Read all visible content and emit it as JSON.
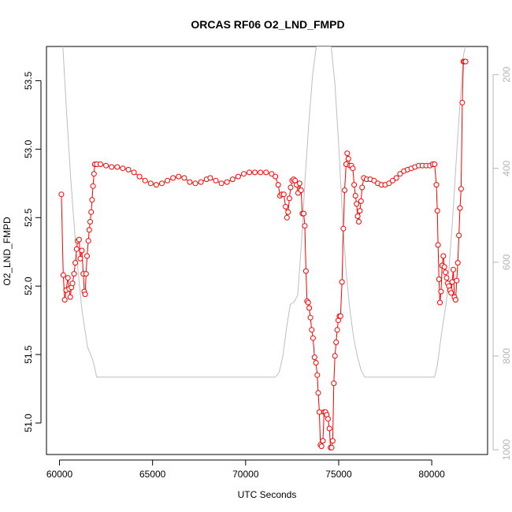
{
  "chart_data": {
    "type": "line",
    "title": "ORCAS RF06 O2_LND_FMPD",
    "xlabel": "UTC Seconds",
    "ylabel": "O2_LND_FMPD",
    "xlim": [
      59300,
      83000
    ],
    "ylim": [
      50.77,
      53.75
    ],
    "y2lim": [
      1010,
      140
    ],
    "y2_reversed": true,
    "x_ticks": [
      60000,
      65000,
      70000,
      75000,
      80000
    ],
    "y_ticks": [
      51.0,
      51.5,
      52.0,
      52.5,
      53.0,
      53.5
    ],
    "y_tick_labels": [
      "51.0",
      "51.5",
      "52.0",
      "52.5",
      "53.0",
      "53.5"
    ],
    "y2_ticks": [
      200,
      400,
      600,
      800,
      1000
    ],
    "grid": false,
    "colors": {
      "series": "#ff0000",
      "secondary": "#bebebe",
      "axes": "#000000",
      "right_axis": "#b4b4b4"
    },
    "series": [
      {
        "style": "points-and-lines",
        "marker": "open-circle",
        "color": "#ff0000",
        "points": [
          [
            60100,
            52.67
          ],
          [
            60200,
            52.08
          ],
          [
            60280,
            51.9
          ],
          [
            60360,
            51.97
          ],
          [
            60450,
            52.06
          ],
          [
            60520,
            51.98
          ],
          [
            60580,
            51.92
          ],
          [
            60640,
            51.99
          ],
          [
            60700,
            52.02
          ],
          [
            60780,
            52.09
          ],
          [
            60850,
            52.17
          ],
          [
            60920,
            52.27
          ],
          [
            60980,
            52.33
          ],
          [
            61050,
            52.34
          ],
          [
            61120,
            52.2
          ],
          [
            61200,
            52.26
          ],
          [
            61280,
            52.09
          ],
          [
            61330,
            51.96
          ],
          [
            61380,
            51.94
          ],
          [
            61430,
            52.09
          ],
          [
            61480,
            52.22
          ],
          [
            61550,
            52.33
          ],
          [
            61600,
            52.41
          ],
          [
            61650,
            52.47
          ],
          [
            61700,
            52.54
          ],
          [
            61750,
            52.63
          ],
          [
            61800,
            52.73
          ],
          [
            61850,
            52.82
          ],
          [
            61900,
            52.89
          ],
          [
            62000,
            52.89
          ],
          [
            62200,
            52.89
          ],
          [
            62500,
            52.88
          ],
          [
            62800,
            52.87
          ],
          [
            63100,
            52.87
          ],
          [
            63400,
            52.86
          ],
          [
            63700,
            52.85
          ],
          [
            64000,
            52.83
          ],
          [
            64300,
            52.8
          ],
          [
            64600,
            52.77
          ],
          [
            64900,
            52.75
          ],
          [
            65200,
            52.74
          ],
          [
            65500,
            52.75
          ],
          [
            65800,
            52.77
          ],
          [
            66100,
            52.79
          ],
          [
            66400,
            52.8
          ],
          [
            66700,
            52.79
          ],
          [
            67000,
            52.76
          ],
          [
            67300,
            52.75
          ],
          [
            67600,
            52.76
          ],
          [
            67900,
            52.78
          ],
          [
            68100,
            52.79
          ],
          [
            68400,
            52.77
          ],
          [
            68700,
            52.75
          ],
          [
            69000,
            52.76
          ],
          [
            69300,
            52.78
          ],
          [
            69600,
            52.8
          ],
          [
            69900,
            52.82
          ],
          [
            70200,
            52.83
          ],
          [
            70500,
            52.83
          ],
          [
            70800,
            52.83
          ],
          [
            71100,
            52.83
          ],
          [
            71400,
            52.82
          ],
          [
            71600,
            52.8
          ],
          [
            71750,
            52.74
          ],
          [
            71850,
            52.66
          ],
          [
            71950,
            52.67
          ],
          [
            72050,
            52.67
          ],
          [
            72150,
            52.58
          ],
          [
            72220,
            52.5
          ],
          [
            72280,
            52.54
          ],
          [
            72350,
            52.64
          ],
          [
            72420,
            52.72
          ],
          [
            72500,
            52.77
          ],
          [
            72580,
            52.78
          ],
          [
            72660,
            52.77
          ],
          [
            72740,
            52.74
          ],
          [
            72820,
            52.68
          ],
          [
            72900,
            52.75
          ],
          [
            72980,
            52.7
          ],
          [
            73050,
            52.53
          ],
          [
            73120,
            52.53
          ],
          [
            73180,
            52.44
          ],
          [
            73240,
            52.11
          ],
          [
            73300,
            51.89
          ],
          [
            73360,
            51.88
          ],
          [
            73420,
            51.84
          ],
          [
            73480,
            51.77
          ],
          [
            73550,
            51.68
          ],
          [
            73620,
            51.62
          ],
          [
            73700,
            51.48
          ],
          [
            73780,
            51.44
          ],
          [
            73850,
            51.35
          ],
          [
            73900,
            51.22
          ],
          [
            73960,
            51.08
          ],
          [
            74020,
            50.84
          ],
          [
            74080,
            50.83
          ],
          [
            74150,
            50.87
          ],
          [
            74220,
            51.08
          ],
          [
            74290,
            51.08
          ],
          [
            74360,
            51.06
          ],
          [
            74430,
            51.03
          ],
          [
            74500,
            50.96
          ],
          [
            74560,
            50.82
          ],
          [
            74620,
            50.82
          ],
          [
            74680,
            50.87
          ],
          [
            74740,
            51.29
          ],
          [
            74800,
            51.49
          ],
          [
            74860,
            51.59
          ],
          [
            74920,
            51.68
          ],
          [
            74980,
            51.75
          ],
          [
            75040,
            51.78
          ],
          [
            75100,
            51.78
          ],
          [
            75180,
            52.03
          ],
          [
            75250,
            52.42
          ],
          [
            75320,
            52.7
          ],
          [
            75400,
            52.89
          ],
          [
            75460,
            52.97
          ],
          [
            75520,
            52.93
          ],
          [
            75600,
            52.88
          ],
          [
            75680,
            52.88
          ],
          [
            75760,
            52.86
          ],
          [
            75830,
            52.74
          ],
          [
            75900,
            52.66
          ],
          [
            75960,
            52.6
          ],
          [
            76020,
            52.51
          ],
          [
            76080,
            52.47
          ],
          [
            76140,
            52.55
          ],
          [
            76200,
            52.62
          ],
          [
            76260,
            52.72
          ],
          [
            76350,
            52.79
          ],
          [
            76500,
            52.78
          ],
          [
            76700,
            52.78
          ],
          [
            76900,
            52.77
          ],
          [
            77100,
            52.75
          ],
          [
            77300,
            52.74
          ],
          [
            77500,
            52.74
          ],
          [
            77700,
            52.75
          ],
          [
            77900,
            52.77
          ],
          [
            78100,
            52.79
          ],
          [
            78300,
            52.82
          ],
          [
            78500,
            52.84
          ],
          [
            78700,
            52.85
          ],
          [
            78900,
            52.86
          ],
          [
            79100,
            52.87
          ],
          [
            79300,
            52.88
          ],
          [
            79500,
            52.88
          ],
          [
            79700,
            52.88
          ],
          [
            79900,
            52.88
          ],
          [
            80050,
            52.89
          ],
          [
            80150,
            52.89
          ],
          [
            80250,
            52.74
          ],
          [
            80300,
            52.55
          ],
          [
            80340,
            52.3
          ],
          [
            80390,
            52.05
          ],
          [
            80440,
            51.88
          ],
          [
            80500,
            51.96
          ],
          [
            80560,
            52.15
          ],
          [
            80620,
            52.22
          ],
          [
            80680,
            52.14
          ],
          [
            80740,
            52.1
          ],
          [
            80800,
            52.06
          ],
          [
            80860,
            52.02
          ],
          [
            80920,
            52.0
          ],
          [
            80980,
            51.97
          ],
          [
            81040,
            51.95
          ],
          [
            81100,
            52.03
          ],
          [
            81160,
            52.12
          ],
          [
            81220,
            51.92
          ],
          [
            81280,
            51.9
          ],
          [
            81340,
            52.04
          ],
          [
            81400,
            52.17
          ],
          [
            81460,
            52.37
          ],
          [
            81520,
            52.57
          ],
          [
            81580,
            52.71
          ],
          [
            81640,
            53.34
          ],
          [
            81700,
            53.64
          ],
          [
            81760,
            53.64
          ],
          [
            81820,
            53.64
          ]
        ]
      },
      {
        "style": "line",
        "color": "#bebebe",
        "axis": "right",
        "points": [
          [
            60180,
            140
          ],
          [
            60350,
            260
          ],
          [
            60600,
            420
          ],
          [
            60900,
            580
          ],
          [
            61200,
            700
          ],
          [
            61500,
            780
          ],
          [
            61800,
            810
          ],
          [
            62000,
            845
          ],
          [
            62500,
            845
          ],
          [
            64000,
            845
          ],
          [
            66000,
            845
          ],
          [
            68000,
            845
          ],
          [
            70000,
            845
          ],
          [
            71000,
            845
          ],
          [
            71600,
            845
          ],
          [
            71800,
            835
          ],
          [
            72000,
            800
          ],
          [
            72200,
            740
          ],
          [
            72400,
            690
          ],
          [
            72600,
            685
          ],
          [
            72800,
            670
          ],
          [
            73000,
            560
          ],
          [
            73200,
            420
          ],
          [
            73400,
            300
          ],
          [
            73600,
            200
          ],
          [
            73800,
            140
          ],
          [
            74600,
            140
          ],
          [
            74800,
            220
          ],
          [
            75000,
            350
          ],
          [
            75200,
            500
          ],
          [
            75400,
            620
          ],
          [
            75600,
            700
          ],
          [
            75800,
            760
          ],
          [
            76000,
            800
          ],
          [
            76200,
            830
          ],
          [
            76400,
            845
          ],
          [
            77000,
            845
          ],
          [
            78000,
            845
          ],
          [
            79000,
            845
          ],
          [
            80000,
            845
          ],
          [
            80150,
            845
          ],
          [
            80300,
            820
          ],
          [
            80500,
            760
          ],
          [
            80800,
            680
          ],
          [
            81100,
            520
          ],
          [
            81400,
            330
          ],
          [
            81700,
            160
          ],
          [
            81800,
            140
          ]
        ]
      }
    ]
  }
}
